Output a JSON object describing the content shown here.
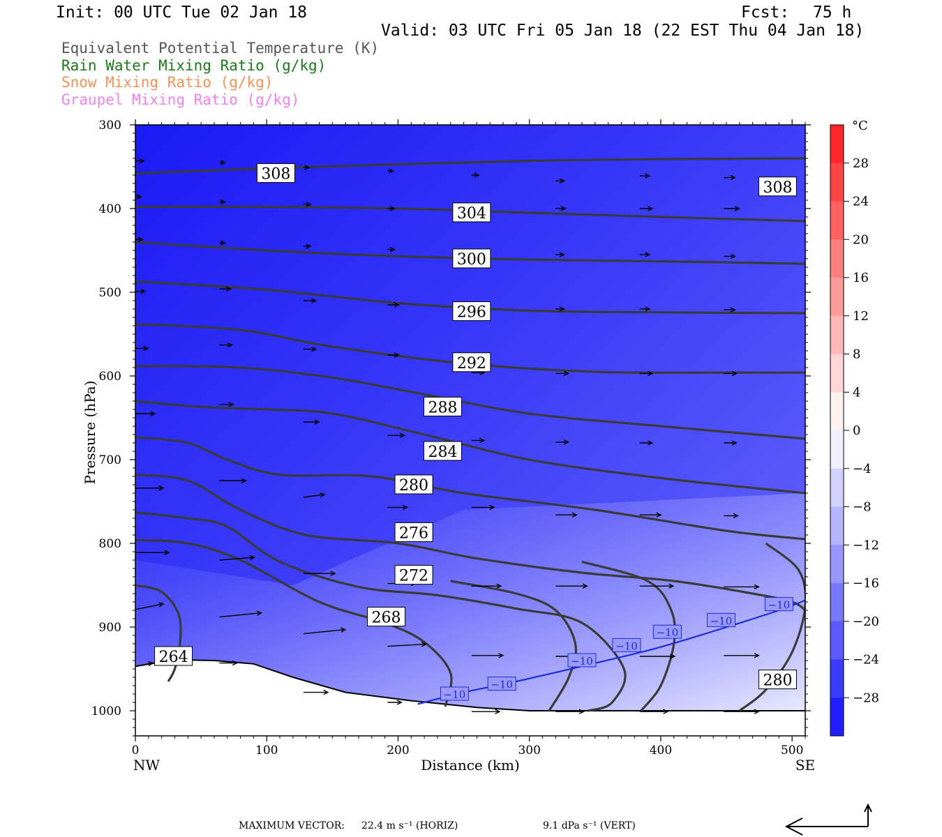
{
  "header": {
    "init": "Init: 00 UTC Tue 02 Jan 18",
    "fcst_label": "Fcst:",
    "fcst_value": "75 h",
    "valid": "Valid: 03 UTC Fri 05 Jan 18 (22 EST Thu 04 Jan 18)"
  },
  "fields": [
    {
      "text": "Equivalent Potential Temperature (K)",
      "color": "#555555"
    },
    {
      "text": "Rain Water Mixing Ratio (g/kg)",
      "color": "#1a7a1a"
    },
    {
      "text": "Snow Mixing Ratio (g/kg)",
      "color": "#f4925a"
    },
    {
      "text": "Graupel Mixing Ratio (g/kg)",
      "color": "#ee82ee"
    }
  ],
  "footer": {
    "max_vector_label": "MAXIMUM VECTOR:",
    "horiz": "22.4 m s⁻¹ (HORIZ)",
    "vert": "9.1 dPa s⁻¹ (VERT)"
  },
  "chart_data": {
    "type": "cross-section",
    "ylabel": "Pressure (hPa)",
    "xlabel": "Distance (km)",
    "x_left_label": "NW",
    "x_right_label": "SE",
    "xlim": [
      0,
      510
    ],
    "ylim": [
      1030,
      300
    ],
    "x_ticks": [
      0,
      100,
      200,
      300,
      400,
      500
    ],
    "y_ticks": [
      300,
      400,
      500,
      600,
      700,
      800,
      900,
      1000
    ],
    "colorbar": {
      "unit": "°C",
      "min": -32,
      "max": 32,
      "step": 4,
      "labels": [
        28,
        24,
        20,
        16,
        12,
        8,
        4,
        0,
        -4,
        -8,
        -12,
        -16,
        -20,
        -24,
        -28
      ]
    },
    "theta_e_contours": [
      {
        "value": 308,
        "points": [
          [
            0,
            358
          ],
          [
            100,
            352
          ],
          [
            200,
            347
          ],
          [
            300,
            343
          ],
          [
            400,
            341
          ],
          [
            510,
            340
          ]
        ]
      },
      {
        "value": 304,
        "points": [
          [
            0,
            398
          ],
          [
            100,
            398
          ],
          [
            200,
            400
          ],
          [
            300,
            405
          ],
          [
            400,
            410
          ],
          [
            510,
            415
          ]
        ]
      },
      {
        "value": 300,
        "points": [
          [
            0,
            440
          ],
          [
            100,
            450
          ],
          [
            200,
            457
          ],
          [
            300,
            461
          ],
          [
            400,
            463
          ],
          [
            510,
            466
          ]
        ]
      },
      {
        "value": 296,
        "points": [
          [
            0,
            487
          ],
          [
            100,
            497
          ],
          [
            200,
            513
          ],
          [
            300,
            522
          ],
          [
            400,
            524
          ],
          [
            510,
            525
          ]
        ]
      },
      {
        "value": 292,
        "points": [
          [
            0,
            538
          ],
          [
            80,
            545
          ],
          [
            150,
            565
          ],
          [
            250,
            585
          ],
          [
            350,
            595
          ],
          [
            450,
            596
          ],
          [
            510,
            596
          ]
        ]
      },
      {
        "value": 288,
        "points": [
          [
            0,
            588
          ],
          [
            80,
            590
          ],
          [
            150,
            602
          ],
          [
            220,
            622
          ],
          [
            300,
            645
          ],
          [
            400,
            660
          ],
          [
            510,
            675
          ]
        ]
      },
      {
        "value": 284,
        "points": [
          [
            0,
            630
          ],
          [
            50,
            637
          ],
          [
            100,
            640
          ],
          [
            150,
            645
          ],
          [
            220,
            670
          ],
          [
            300,
            700
          ],
          [
            400,
            722
          ],
          [
            510,
            740
          ]
        ]
      },
      {
        "value": 280,
        "points": [
          [
            0,
            673
          ],
          [
            40,
            680
          ],
          [
            70,
            700
          ],
          [
            110,
            718
          ],
          [
            180,
            720
          ],
          [
            250,
            740
          ],
          [
            350,
            760
          ],
          [
            450,
            785
          ],
          [
            510,
            795
          ]
        ]
      },
      {
        "value": 276,
        "points": [
          [
            0,
            718
          ],
          [
            40,
            725
          ],
          [
            80,
            760
          ],
          [
            130,
            790
          ],
          [
            200,
            800
          ],
          [
            260,
            818
          ],
          [
            340,
            835
          ],
          [
            410,
            845
          ],
          [
            470,
            860
          ],
          [
            500,
            870
          ],
          [
            510,
            880
          ]
        ]
      },
      {
        "value": 272,
        "points": [
          [
            0,
            763
          ],
          [
            40,
            770
          ],
          [
            70,
            780
          ],
          [
            110,
            822
          ],
          [
            170,
            852
          ],
          [
            230,
            862
          ],
          [
            290,
            878
          ],
          [
            340,
            895
          ],
          [
            372,
            950
          ],
          [
            363,
            990
          ],
          [
            345,
            1000
          ]
        ]
      },
      {
        "value": 268,
        "points": [
          [
            0,
            796
          ],
          [
            40,
            800
          ],
          [
            80,
            820
          ],
          [
            140,
            870
          ],
          [
            190,
            895
          ],
          [
            220,
            918
          ],
          [
            240,
            955
          ],
          [
            236,
            995
          ]
        ]
      },
      {
        "value": 264,
        "points": [
          [
            0,
            850
          ],
          [
            20,
            858
          ],
          [
            33,
            885
          ],
          [
            34,
            920
          ],
          [
            30,
            950
          ],
          [
            25,
            965
          ]
        ]
      },
      {
        "value": 280,
        "points": [
          [
            460,
            1000
          ],
          [
            480,
            975
          ],
          [
            500,
            930
          ],
          [
            510,
            875
          ],
          [
            505,
            832
          ],
          [
            480,
            800
          ]
        ]
      },
      {
        "value": 276,
        "points": [
          [
            385,
            1000
          ],
          [
            400,
            970
          ],
          [
            410,
            920
          ],
          [
            408,
            880
          ],
          [
            390,
            845
          ],
          [
            340,
            822
          ]
        ]
      },
      {
        "value": 272,
        "points": [
          [
            315,
            1000
          ],
          [
            330,
            960
          ],
          [
            335,
            920
          ],
          [
            320,
            880
          ],
          [
            290,
            860
          ],
          [
            240,
            845
          ]
        ]
      }
    ],
    "contour_labels": [
      {
        "text": "308",
        "x": 107,
        "y": 358
      },
      {
        "text": "308",
        "x": 489,
        "y": 374
      },
      {
        "text": "304",
        "x": 256,
        "y": 405
      },
      {
        "text": "300",
        "x": 256,
        "y": 460
      },
      {
        "text": "296",
        "x": 256,
        "y": 523
      },
      {
        "text": "292",
        "x": 256,
        "y": 584
      },
      {
        "text": "288",
        "x": 234,
        "y": 637
      },
      {
        "text": "284",
        "x": 234,
        "y": 690
      },
      {
        "text": "280",
        "x": 212,
        "y": 730
      },
      {
        "text": "276",
        "x": 212,
        "y": 787
      },
      {
        "text": "272",
        "x": 212,
        "y": 838
      },
      {
        "text": "268",
        "x": 191,
        "y": 888
      },
      {
        "text": "264",
        "x": 29,
        "y": 935
      },
      {
        "text": "280",
        "x": 489,
        "y": 963
      }
    ],
    "isotherm_minus10": {
      "value": "−10",
      "points": [
        [
          215,
          992
        ],
        [
          250,
          978
        ],
        [
          290,
          965
        ],
        [
          345,
          945
        ],
        [
          395,
          926
        ],
        [
          440,
          905
        ],
        [
          490,
          880
        ],
        [
          510,
          868
        ]
      ],
      "labels": [
        [
          243,
          980
        ],
        [
          279,
          968
        ],
        [
          340,
          940
        ],
        [
          374,
          922
        ],
        [
          405,
          906
        ],
        [
          446,
          892
        ],
        [
          490,
          873
        ]
      ]
    },
    "terrain_pressure": [
      [
        0,
        947
      ],
      [
        30,
        939
      ],
      [
        60,
        940
      ],
      [
        90,
        944
      ],
      [
        120,
        960
      ],
      [
        160,
        978
      ],
      [
        210,
        988
      ],
      [
        260,
        996
      ],
      [
        300,
        1000
      ],
      [
        400,
        1000
      ],
      [
        510,
        1000
      ]
    ],
    "wind_vectors": [
      [
        0,
        343,
        12,
        0
      ],
      [
        64,
        345,
        8,
        0
      ],
      [
        128,
        351,
        8,
        0
      ],
      [
        192,
        355,
        8,
        0
      ],
      [
        256,
        360,
        10,
        0
      ],
      [
        320,
        367,
        12,
        0
      ],
      [
        384,
        361,
        14,
        0
      ],
      [
        448,
        363,
        16,
        0
      ],
      [
        0,
        386,
        8,
        0
      ],
      [
        64,
        392,
        8,
        0
      ],
      [
        128,
        395,
        10,
        0
      ],
      [
        192,
        400,
        10,
        0
      ],
      [
        256,
        400,
        12,
        0
      ],
      [
        320,
        400,
        14,
        0
      ],
      [
        384,
        400,
        18,
        0
      ],
      [
        448,
        400,
        22,
        0
      ],
      [
        0,
        437,
        10,
        0
      ],
      [
        64,
        441,
        8,
        0
      ],
      [
        128,
        445,
        10,
        0
      ],
      [
        192,
        449,
        10,
        0
      ],
      [
        256,
        454,
        10,
        0
      ],
      [
        320,
        455,
        12,
        0
      ],
      [
        384,
        455,
        14,
        0
      ],
      [
        448,
        457,
        16,
        0
      ],
      [
        0,
        499,
        14,
        0
      ],
      [
        64,
        496,
        16,
        0
      ],
      [
        128,
        510,
        18,
        0
      ],
      [
        192,
        515,
        16,
        0
      ],
      [
        256,
        520,
        12,
        0
      ],
      [
        320,
        520,
        12,
        0
      ],
      [
        384,
        520,
        14,
        0
      ],
      [
        448,
        521,
        16,
        0
      ],
      [
        0,
        567,
        18,
        0
      ],
      [
        64,
        563,
        18,
        0
      ],
      [
        128,
        568,
        18,
        0
      ],
      [
        192,
        575,
        16,
        0
      ],
      [
        256,
        596,
        18,
        0
      ],
      [
        320,
        597,
        18,
        0
      ],
      [
        384,
        597,
        18,
        0
      ],
      [
        448,
        597,
        18,
        0
      ],
      [
        0,
        645,
        28,
        0
      ],
      [
        64,
        634,
        20,
        0
      ],
      [
        128,
        655,
        22,
        0
      ],
      [
        192,
        671,
        24,
        0
      ],
      [
        256,
        677,
        18,
        0
      ],
      [
        320,
        679,
        18,
        0
      ],
      [
        384,
        680,
        18,
        0
      ],
      [
        448,
        680,
        18,
        0
      ],
      [
        0,
        734,
        40,
        0
      ],
      [
        64,
        725,
        38,
        0
      ],
      [
        128,
        745,
        30,
        -4
      ],
      [
        192,
        757,
        28,
        0
      ],
      [
        256,
        757,
        32,
        0
      ],
      [
        320,
        766,
        30,
        0
      ],
      [
        384,
        766,
        30,
        0
      ],
      [
        448,
        767,
        20,
        0
      ],
      [
        0,
        811,
        48,
        0
      ],
      [
        64,
        820,
        50,
        -4
      ],
      [
        128,
        836,
        45,
        0
      ],
      [
        192,
        848,
        40,
        0
      ],
      [
        256,
        851,
        42,
        0
      ],
      [
        320,
        851,
        45,
        0
      ],
      [
        384,
        851,
        48,
        0
      ],
      [
        448,
        852,
        50,
        0
      ],
      [
        0,
        879,
        40,
        -8
      ],
      [
        64,
        888,
        60,
        -6
      ],
      [
        128,
        908,
        60,
        -6
      ],
      [
        192,
        923,
        55,
        -3
      ],
      [
        256,
        934,
        45,
        0
      ],
      [
        320,
        935,
        50,
        0
      ],
      [
        384,
        935,
        50,
        0
      ],
      [
        448,
        934,
        50,
        0
      ],
      [
        0,
        947,
        25,
        -5
      ],
      [
        64,
        943,
        25,
        0
      ],
      [
        128,
        978,
        35,
        0
      ],
      [
        192,
        990,
        20,
        0
      ],
      [
        256,
        1001,
        40,
        0
      ],
      [
        320,
        1001,
        40,
        0
      ],
      [
        384,
        1001,
        40,
        0
      ],
      [
        448,
        1001,
        50,
        0
      ]
    ]
  }
}
